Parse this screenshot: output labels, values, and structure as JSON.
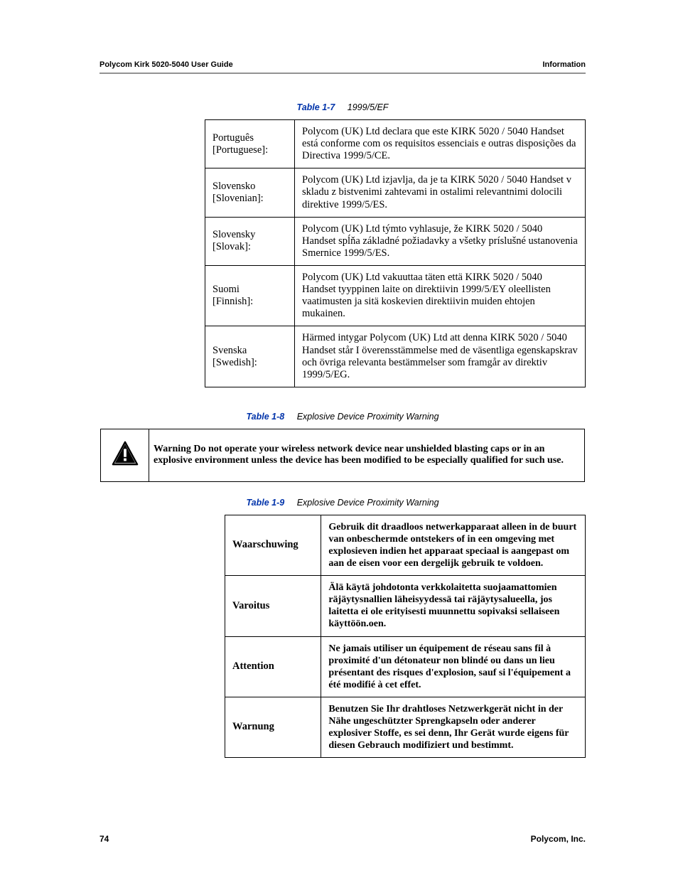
{
  "colors": {
    "text": "#000000",
    "caption_num": "#0033aa",
    "rule": "#939393",
    "background": "#ffffff",
    "border": "#000000"
  },
  "typography": {
    "body_family": "Book Antiqua / Palatino (serif)",
    "sans_family": "Arial / Helvetica",
    "body_size_pt": 11,
    "header_size_pt": 8.5,
    "caption_size_pt": 9.5
  },
  "header": {
    "left": "Polycom Kirk 5020-5040 User Guide",
    "right": "Information"
  },
  "footer": {
    "page_number": "74",
    "company": "Polycom, Inc."
  },
  "table7": {
    "caption_num": "Table 1-7",
    "caption_title": "1999/5/EF",
    "rows": [
      {
        "lang_name": "Português",
        "lang_en": "[Portuguese]:",
        "text": "Polycom (UK) Ltd declara que este KIRK 5020 / 5040 Handset está conforme com os requisitos essenciais e outras disposições da Directiva 1999/5/CE."
      },
      {
        "lang_name": "Slovensko",
        "lang_en": "[Slovenian]:",
        "text": "Polycom (UK) Ltd izjavlja, da je ta KIRK 5020 / 5040 Handset v skladu z bistvenimi zahtevami in ostalimi relevantnimi dolocili direktive 1999/5/ES."
      },
      {
        "lang_name": "Slovensky",
        "lang_en": "[Slovak]:",
        "text": "Polycom (UK) Ltd týmto vyhlasuje, že KIRK 5020 / 5040 Handset spĺňa základné požiadavky a všetky príslušné ustanovenia Smernice 1999/5/ES."
      },
      {
        "lang_name": "Suomi",
        "lang_en": "[Finnish]:",
        "text": "Polycom (UK) Ltd vakuuttaa täten että KIRK 5020 / 5040 Handset tyyppinen laite on direktiivin 1999/5/EY oleellisten vaatimusten ja sitä koskevien direktiivin muiden ehtojen mukainen."
      },
      {
        "lang_name": "Svenska",
        "lang_en": "[Swedish]:",
        "text": "Härmed intygar Polycom (UK) Ltd att denna KIRK 5020 / 5040 Handset står I överensstämmelse med de väsentliga egenskapskrav och övriga relevanta bestämmelser som framgår av direktiv 1999/5/EG."
      }
    ]
  },
  "table8": {
    "caption_num": "Table 1-8",
    "caption_title": "Explosive Device Proximity Warning",
    "icon": "warning-triangle-icon",
    "text": "Warning Do not operate your wireless network device near unshielded blasting caps or in an explosive environment unless the device has been modified to be especially qualified for such use."
  },
  "table9": {
    "caption_num": "Table 1-9",
    "caption_title": "Explosive Device Proximity Warning",
    "rows": [
      {
        "label": "Waarschuwing",
        "text": "Gebruik dit draadloos netwerkapparaat alleen in de buurt van onbeschermde ontstekers of in een omgeving met explosieven indien het apparaat speciaal is aangepast om aan de eisen voor een dergelijk gebruik te voldoen."
      },
      {
        "label": "Varoitus",
        "text": "Älä käytä johdotonta verkkolaitetta suojaamattomien räjäytysnallien läheisyydessä tai räjäytysalueella, jos laitetta ei ole erityisesti muunnettu sopivaksi sellaiseen käyttöön.oen."
      },
      {
        "label": "Attention",
        "text": "Ne jamais utiliser un équipement de réseau sans fil à proximité d'un détonateur non blindé ou dans un lieu présentant des risques d'explosion, sauf si l'équipement a été modifié à cet effet."
      },
      {
        "label": "Warnung",
        "text": "Benutzen Sie Ihr drahtloses Netzwerkgerät nicht in der Nähe ungeschützter Sprengkapseln oder anderer explosiver Stoffe, es sei denn, Ihr Gerät wurde eigens für diesen Gebrauch modifiziert und bestimmt."
      }
    ]
  }
}
